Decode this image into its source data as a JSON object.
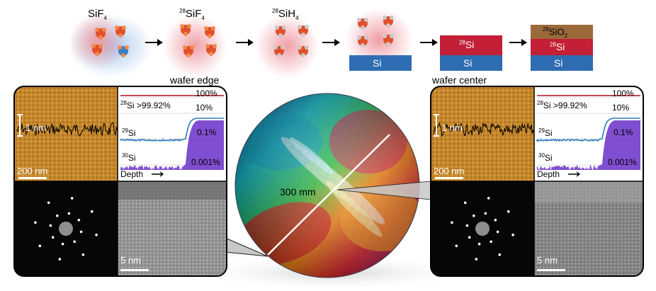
{
  "process": {
    "stage1": "SiF",
    "stage1_sub": "4",
    "stage2_sup": "28",
    "stage2": "SiF",
    "stage2_sub": "4",
    "stage3_sup": "28",
    "stage3": "SiH",
    "stage3_sub": "4",
    "substrate": "Si",
    "layer_sup": "28",
    "layer": "Si",
    "oxide_sup": "28",
    "oxide": "SiO",
    "oxide_sub": "2"
  },
  "left_panel": {
    "title": "wafer edge",
    "afm_scale": "1 nm",
    "afm_bar": "200 nm",
    "sims": {
      "p100": "100%",
      "si28": ">99.92%",
      "p10": "10%",
      "p01": "0.1%",
      "p0001": "0.001%",
      "depth": "Depth"
    },
    "tem_bar": "5 nm"
  },
  "right_panel": {
    "title": "wafer center",
    "afm_scale": "1 nm",
    "afm_bar": "200 nm",
    "sims": {
      "p100": "100%",
      "si28": ">99.92%",
      "p10": "10%",
      "p01": "0.1%",
      "p0001": "0.001%",
      "depth": "Depth"
    },
    "tem_bar": "5 nm"
  },
  "isotopes": {
    "m28": "28",
    "m29": "29",
    "m30": "30",
    "si": "Si"
  },
  "wafer": {
    "diameter": "300 mm"
  },
  "colors": {
    "si_blue": "#2f6db3",
    "si28_red": "#c31f36",
    "sio2_brown": "#9a6a3b",
    "afm_orange": "#c88a2e",
    "sims_red": "#c0303c",
    "sims_blue": "#2c7bbf",
    "sims_purple": "#6a2fc8"
  }
}
